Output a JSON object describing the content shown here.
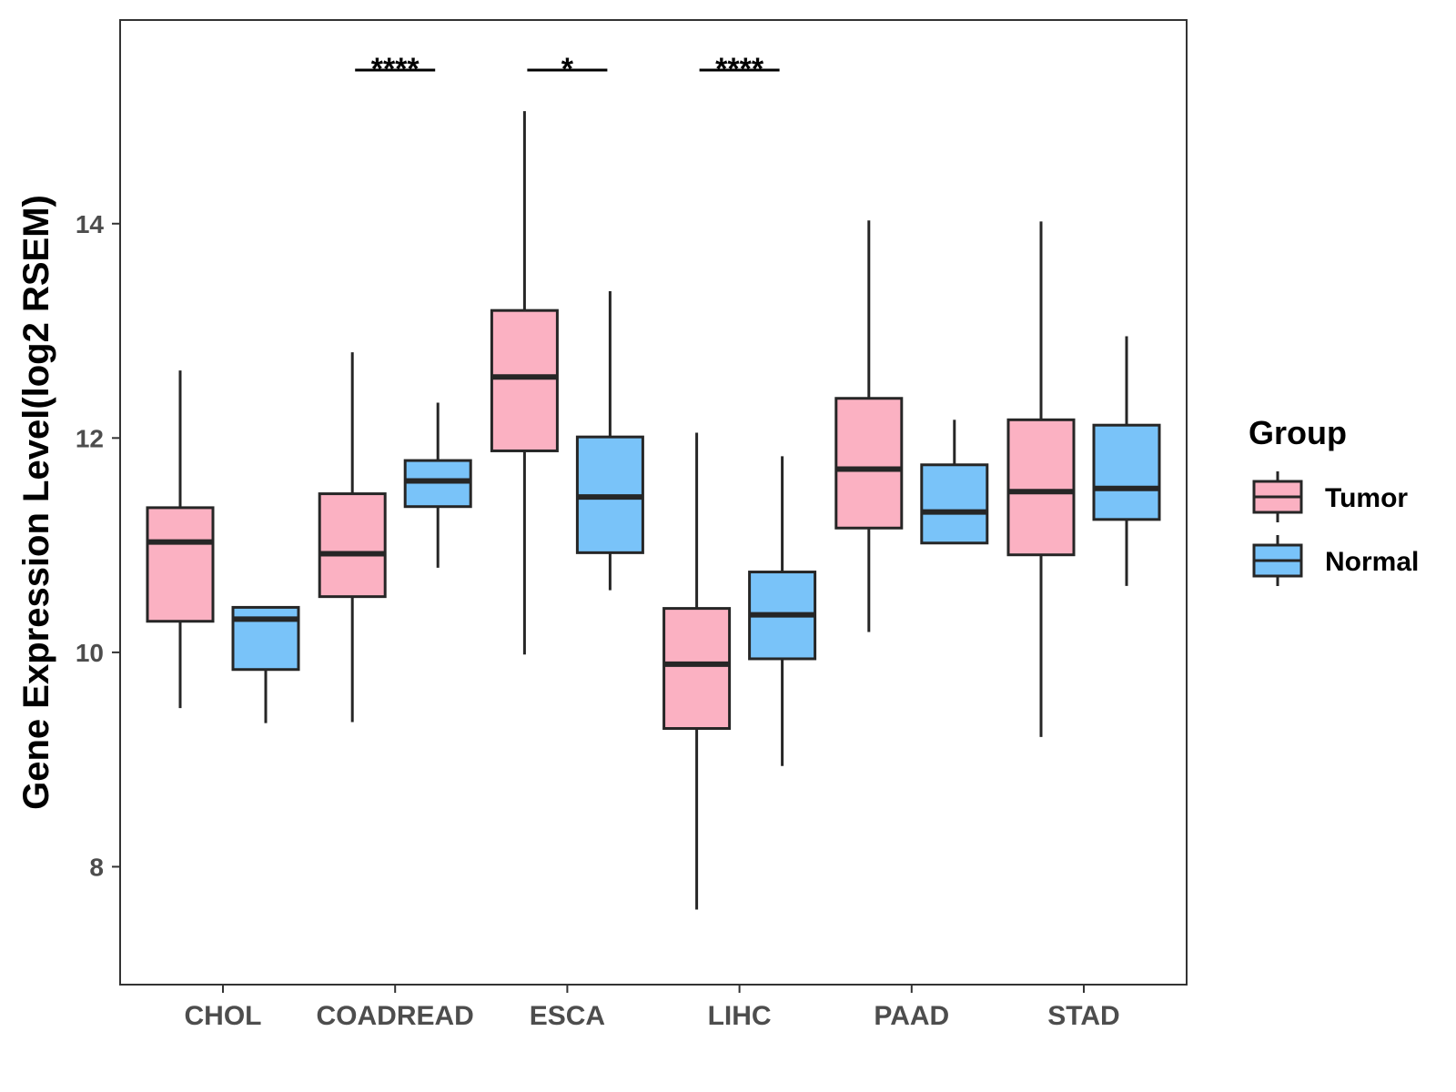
{
  "chart_data": {
    "type": "boxplot",
    "title": "",
    "xlabel": "",
    "ylabel": "Gene Expression Level(log2 RSEM)",
    "ylim": [
      6.9,
      15.9
    ],
    "yticks": [
      8,
      10,
      12,
      14
    ],
    "categories": [
      "CHOL",
      "COADREAD",
      "ESCA",
      "LIHC",
      "PAAD",
      "STAD"
    ],
    "legend": {
      "title": "Group",
      "position": "right"
    },
    "colors": {
      "Tumor": "#fbb1c2",
      "Normal": "#79c3f9",
      "outline": "#262626"
    },
    "series": [
      {
        "name": "Tumor",
        "boxes": [
          {
            "min": 9.48,
            "q1": 10.29,
            "median": 11.03,
            "q3": 11.35,
            "max": 12.63
          },
          {
            "min": 9.35,
            "q1": 10.52,
            "median": 10.92,
            "q3": 11.48,
            "max": 12.8
          },
          {
            "min": 9.98,
            "q1": 11.88,
            "median": 12.57,
            "q3": 13.19,
            "max": 15.05
          },
          {
            "min": 7.6,
            "q1": 9.29,
            "median": 9.89,
            "q3": 10.41,
            "max": 12.05
          },
          {
            "min": 10.19,
            "q1": 11.16,
            "median": 11.71,
            "q3": 12.37,
            "max": 14.03
          },
          {
            "min": 9.21,
            "q1": 10.91,
            "median": 11.5,
            "q3": 12.17,
            "max": 14.02
          }
        ]
      },
      {
        "name": "Normal",
        "boxes": [
          {
            "min": 9.34,
            "q1": 9.84,
            "median": 10.31,
            "q3": 10.42,
            "max": 10.42
          },
          {
            "min": 10.79,
            "q1": 11.36,
            "median": 11.6,
            "q3": 11.79,
            "max": 12.33
          },
          {
            "min": 10.58,
            "q1": 10.93,
            "median": 11.45,
            "q3": 12.01,
            "max": 13.37
          },
          {
            "min": 8.94,
            "q1": 9.94,
            "median": 10.35,
            "q3": 10.75,
            "max": 11.83
          },
          {
            "min": 11.02,
            "q1": 11.02,
            "median": 11.31,
            "q3": 11.75,
            "max": 12.17
          },
          {
            "min": 10.62,
            "q1": 11.24,
            "median": 11.53,
            "q3": 12.12,
            "max": 12.95
          }
        ]
      }
    ],
    "significance": [
      {
        "category": "COADREAD",
        "label": "****",
        "y": 15.45
      },
      {
        "category": "ESCA",
        "label": "*",
        "y": 15.45
      },
      {
        "category": "LIHC",
        "label": "****",
        "y": 15.45
      }
    ],
    "grid": false
  }
}
